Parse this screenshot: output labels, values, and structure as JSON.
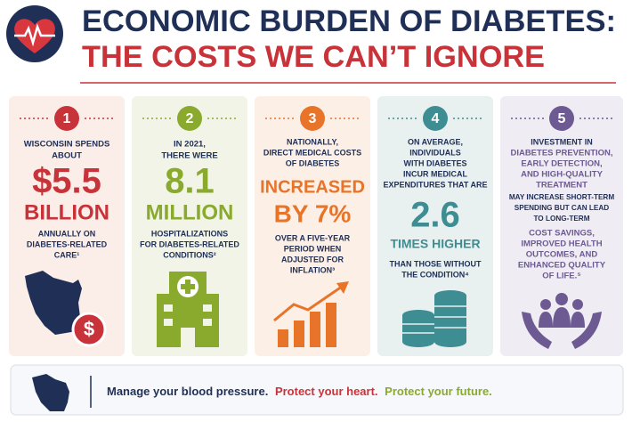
{
  "header": {
    "title_line1": "ECONOMIC BURDEN OF DIABETES:",
    "title_line2": "THE COSTS WE CAN’T IGNORE"
  },
  "cards": [
    {
      "number": "1",
      "lines": [
        "WISCONSIN SPENDS",
        "ABOUT",
        "$5.5",
        "BILLION",
        "ANNUALLY ON",
        "DIABETES-RELATED",
        "CARE¹"
      ]
    },
    {
      "number": "2",
      "lines": [
        "IN 2021,",
        "THERE WERE",
        "8.1",
        "MILLION",
        "HOSPITALIZATIONS",
        "FOR DIABETES-RELATED",
        "CONDITIONS²"
      ]
    },
    {
      "number": "3",
      "lines": [
        "NATIONALLY,",
        "DIRECT MEDICAL COSTS",
        "OF DIABETES",
        "INCREASED",
        "BY 7%",
        "OVER A FIVE-YEAR",
        "PERIOD WHEN",
        "ADJUSTED FOR",
        "INFLATION³"
      ]
    },
    {
      "number": "4",
      "lines": [
        "ON AVERAGE,",
        "INDIVIDUALS",
        "WITH DIABETES",
        "INCUR MEDICAL",
        "EXPENDITURES THAT ARE",
        "2.6",
        "TIMES HIGHER",
        "THAN THOSE WITHOUT",
        "THE CONDITION⁴"
      ]
    },
    {
      "number": "5",
      "lines": [
        "INVESTMENT IN",
        "DIABETES PREVENTION,",
        "EARLY DETECTION,",
        "AND HIGH-QUALITY",
        "TREATMENT",
        "MAY INCREASE SHORT-TERM",
        "SPENDING BUT CAN LEAD",
        "TO LONG-TERM",
        "COST SAVINGS,",
        "IMPROVED HEALTH",
        "OUTCOMES, AND",
        "ENHANCED QUALITY",
        "OF LIFE.⁵"
      ]
    }
  ],
  "footer": {
    "part1": "Manage your blood pressure.",
    "part2": "Protect your heart.",
    "part3": "Protect your future."
  }
}
